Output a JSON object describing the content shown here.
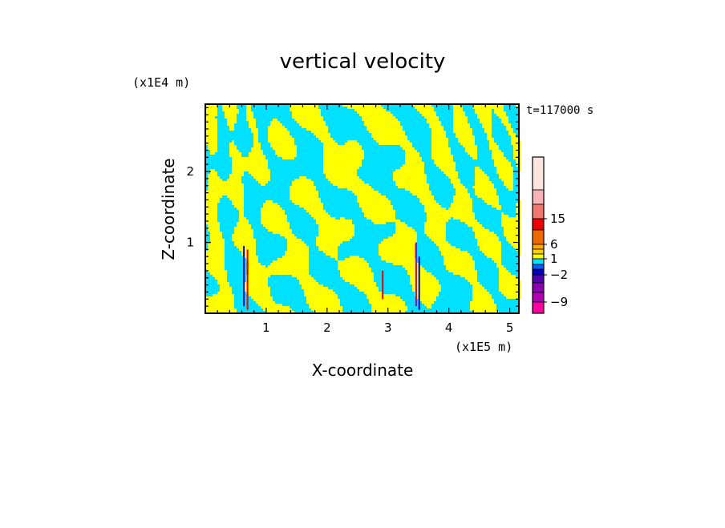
{
  "chart_data": {
    "type": "heatmap",
    "title": "vertical velocity",
    "xlabel": "X-coordinate",
    "ylabel": "Z-coordinate",
    "x_unit": "(x1E5 m)",
    "y_unit": "(x1E4 m)",
    "time_label": "t=117000 s",
    "xlim": [
      0,
      5.15
    ],
    "ylim": [
      0,
      2.95
    ],
    "x_ticks": [
      "1",
      "2",
      "3",
      "4",
      "5"
    ],
    "y_ticks": [
      "1",
      "2"
    ],
    "x_tick_values": [
      1,
      2,
      3,
      4,
      5
    ],
    "y_tick_values": [
      1,
      2
    ],
    "colorbar": {
      "labels": [
        "15",
        "6",
        "1",
        "−2",
        "−9"
      ],
      "label_values": [
        15,
        6,
        1,
        -2,
        -9
      ],
      "levels": [
        {
          "level": 25,
          "color": "#fce4e0"
        },
        {
          "level": 20,
          "color": "#f8b4b4"
        },
        {
          "level": 15,
          "color": "#f07870"
        },
        {
          "level": 10,
          "color": "#ee0000"
        },
        {
          "level": 6,
          "color": "#ee6a00"
        },
        {
          "level": 4,
          "color": "#ffaa00"
        },
        {
          "level": 2,
          "color": "#ffd000"
        },
        {
          "level": 1,
          "color": "#ffff00"
        },
        {
          "level": 0,
          "color": "#00e0ff"
        },
        {
          "level": -1,
          "color": "#0060ff"
        },
        {
          "level": -2,
          "color": "#0000c0"
        },
        {
          "level": -4,
          "color": "#5000b0"
        },
        {
          "level": -6,
          "color": "#8800b0"
        },
        {
          "level": -9,
          "color": "#b000b0"
        },
        {
          "level": -12,
          "color": "#ff00a0"
        }
      ]
    },
    "dominant_colors": {
      "positive": "#ffff00",
      "negative": "#00e0ff"
    }
  }
}
